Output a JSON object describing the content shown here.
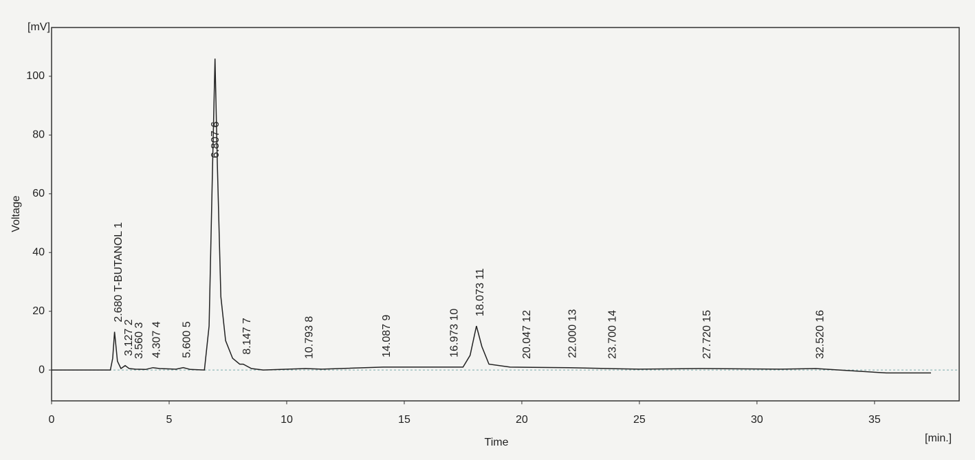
{
  "chart_data": {
    "type": "line",
    "y_unit": "[mV]",
    "x_unit": "[min.]",
    "x_label": "Time",
    "y_label": "Voltage",
    "xlim": [
      0,
      38.6
    ],
    "ylim": [
      -10.5,
      116.6
    ],
    "xticks": [
      0,
      5,
      10,
      15,
      20,
      25,
      30,
      35
    ],
    "yticks": [
      0,
      20,
      40,
      60,
      80,
      100
    ],
    "color": "#222222",
    "baseline_dashed": true,
    "x": [
      0,
      2.5,
      2.6,
      2.68,
      2.8,
      2.95,
      3.13,
      3.3,
      3.56,
      4.0,
      4.31,
      4.6,
      5.3,
      5.6,
      5.9,
      6.5,
      6.7,
      6.85,
      6.95,
      7.05,
      7.2,
      7.4,
      7.7,
      8.0,
      8.15,
      8.5,
      9.0,
      10.8,
      11.5,
      14.1,
      16.97,
      17.5,
      17.8,
      18.07,
      18.3,
      18.6,
      19.5,
      22.0,
      23.7,
      25.0,
      27.7,
      31.0,
      32.5,
      33.5,
      35.5,
      37.4
    ],
    "values": [
      0,
      0,
      4,
      13,
      3,
      0.5,
      1.5,
      0.5,
      0.3,
      0.2,
      0.8,
      0.5,
      0.3,
      0.8,
      0.2,
      0,
      15,
      70,
      106,
      70,
      25,
      10,
      4,
      2,
      2,
      0.5,
      0,
      0.5,
      0.3,
      1,
      1,
      1,
      5,
      15,
      8,
      2,
      1,
      0.8,
      0.5,
      0.3,
      0.5,
      0.3,
      0.5,
      0,
      -1,
      -1
    ],
    "annotations": [
      {
        "x": 2.68,
        "text": "2.680 T-BUTANOL  1"
      },
      {
        "x": 3.127,
        "text": "3.127  2"
      },
      {
        "x": 3.56,
        "text": "3.560  3"
      },
      {
        "x": 4.307,
        "text": "4.307  4"
      },
      {
        "x": 5.6,
        "text": "5.600  5"
      },
      {
        "x": 6.807,
        "text": "6.807  6"
      },
      {
        "x": 8.147,
        "text": "8.147  7"
      },
      {
        "x": 10.793,
        "text": "10.793  8"
      },
      {
        "x": 14.087,
        "text": "14.087  9"
      },
      {
        "x": 16.973,
        "text": "16.973  10"
      },
      {
        "x": 18.073,
        "text": "18.073  11"
      },
      {
        "x": 20.047,
        "text": "20.047  12"
      },
      {
        "x": 22.0,
        "text": "22.000  13"
      },
      {
        "x": 23.7,
        "text": "23.700  14"
      },
      {
        "x": 27.72,
        "text": "27.720  15"
      },
      {
        "x": 32.52,
        "text": "32.520  16"
      }
    ]
  }
}
